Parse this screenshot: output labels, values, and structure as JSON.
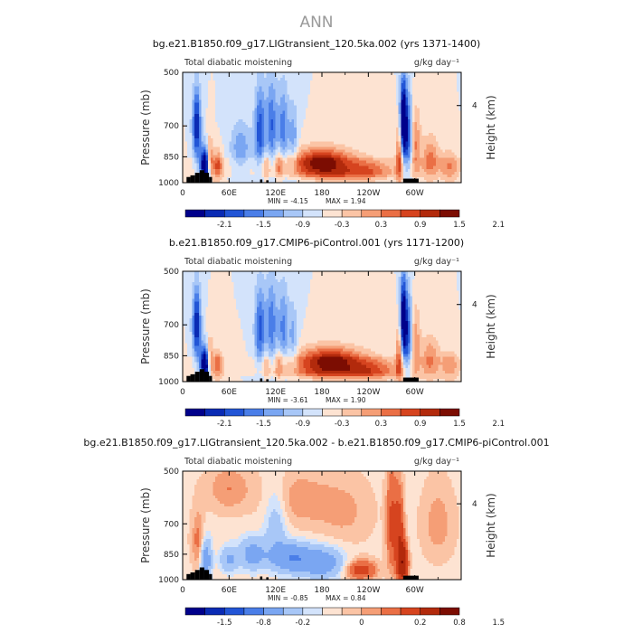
{
  "figure_title": "ANN",
  "colors": [
    "#00008b",
    "#0a2bb4",
    "#2255d6",
    "#4a7ee8",
    "#7aa6f2",
    "#a8c7f7",
    "#d3e3fb",
    "#fde3d2",
    "#fbc4a5",
    "#f59e76",
    "#ea6f45",
    "#d6441f",
    "#b22a0c",
    "#7c0d02"
  ],
  "chart_data": [
    {
      "type": "heatmap",
      "title": "bg.e21.B1850.f09_g17.LIGtransient_120.5ka.002 (yrs 1371-1400)",
      "left_label": "Total diabatic moistening",
      "units": "g/kg day⁻¹",
      "ylabel": "Pressure (mb)",
      "ylabel_right": "Height (km)",
      "xticks": [
        "0",
        "60E",
        "120E",
        "180",
        "120W",
        "60W"
      ],
      "xtick_values": [
        0,
        60,
        120,
        180,
        240,
        300
      ],
      "xlim": [
        0,
        360
      ],
      "yticks": [
        "500",
        "700",
        "850",
        "1000"
      ],
      "ytick_values": [
        500,
        700,
        850,
        1000
      ],
      "ylim": [
        1000,
        500
      ],
      "right_ticks": [
        "4"
      ],
      "right_tick_pressure": [
        616
      ],
      "min_text": "MIN =   -4.15",
      "max_text": "MAX =    1.94",
      "min": -4.15,
      "max": 1.94,
      "colorbar_levels": [
        -2.4,
        -2.1,
        -1.8,
        -1.5,
        -1.2,
        -0.9,
        -0.6,
        -0.3,
        0,
        0.3,
        0.6,
        0.9,
        1.2,
        1.5,
        1.8,
        2.1,
        2.4
      ],
      "colorbar_labels": [
        "-2.1",
        "-1.5",
        "-0.9",
        "-0.3",
        "0.3",
        "0.9",
        "1.5",
        "2.1"
      ],
      "features": [
        {
          "lon": 180,
          "p": 880,
          "amp": 1.9,
          "wl": 28,
          "wp": 55
        },
        {
          "lon": 240,
          "p": 920,
          "amp": 0.8,
          "wl": 22,
          "wp": 45
        },
        {
          "lon": 200,
          "p": 960,
          "amp": 0.7,
          "wl": 45,
          "wp": 30
        },
        {
          "lon": 18,
          "p": 700,
          "amp": -1.8,
          "wl": 4,
          "wp": 110
        },
        {
          "lon": 30,
          "p": 900,
          "amp": -3.0,
          "wl": 5,
          "wp": 70
        },
        {
          "lon": 35,
          "p": 880,
          "amp": 1.9,
          "wl": 3,
          "wp": 80
        },
        {
          "lon": 45,
          "p": 900,
          "amp": 1.2,
          "wl": 5,
          "wp": 60
        },
        {
          "lon": 100,
          "p": 720,
          "amp": -1.4,
          "wl": 5,
          "wp": 130
        },
        {
          "lon": 115,
          "p": 700,
          "amp": -1.2,
          "wl": 5,
          "wp": 140
        },
        {
          "lon": 130,
          "p": 720,
          "amp": -1.1,
          "wl": 5,
          "wp": 130
        },
        {
          "lon": 143,
          "p": 760,
          "amp": -0.8,
          "wl": 4,
          "wp": 110
        },
        {
          "lon": 108,
          "p": 900,
          "amp": 0.7,
          "wl": 4,
          "wp": 60
        },
        {
          "lon": 125,
          "p": 900,
          "amp": 0.8,
          "wl": 4,
          "wp": 60
        },
        {
          "lon": 75,
          "p": 800,
          "amp": -0.8,
          "wl": 10,
          "wp": 90
        },
        {
          "lon": 285,
          "p": 680,
          "amp": -2.6,
          "wl": 3,
          "wp": 120
        },
        {
          "lon": 292,
          "p": 750,
          "amp": -1.6,
          "wl": 4,
          "wp": 130
        },
        {
          "lon": 280,
          "p": 850,
          "amp": 1.3,
          "wl": 3,
          "wp": 110
        },
        {
          "lon": 300,
          "p": 780,
          "amp": 1.0,
          "wl": 5,
          "wp": 120
        },
        {
          "lon": 320,
          "p": 860,
          "amp": 1.0,
          "wl": 8,
          "wp": 80
        },
        {
          "lon": 345,
          "p": 900,
          "amp": 0.8,
          "wl": 8,
          "wp": 60
        },
        {
          "lon": 180,
          "p": 980,
          "amp": -0.5,
          "wl": 80,
          "wp": 20
        }
      ],
      "base_upper": -0.3,
      "base_lower": -0.15,
      "topography": [
        [
          5,
          10,
          965
        ],
        [
          10,
          16,
          955
        ],
        [
          16,
          22,
          940
        ],
        [
          22,
          28,
          925
        ],
        [
          28,
          34,
          940
        ],
        [
          34,
          38,
          965
        ],
        [
          100,
          103,
          980
        ],
        [
          108,
          111,
          985
        ],
        [
          285,
          305,
          975
        ]
      ]
    },
    {
      "type": "heatmap",
      "title": "b.e21.B1850.f09_g17.CMIP6-piControl.001 (yrs 1171-1200)",
      "left_label": "Total diabatic moistening",
      "units": "g/kg day⁻¹",
      "ylabel": "Pressure (mb)",
      "ylabel_right": "Height (km)",
      "xticks": [
        "0",
        "60E",
        "120E",
        "180",
        "120W",
        "60W"
      ],
      "xtick_values": [
        0,
        60,
        120,
        180,
        240,
        300
      ],
      "xlim": [
        0,
        360
      ],
      "yticks": [
        "500",
        "700",
        "850",
        "1000"
      ],
      "ytick_values": [
        500,
        700,
        850,
        1000
      ],
      "ylim": [
        1000,
        500
      ],
      "right_ticks": [
        "4"
      ],
      "right_tick_pressure": [
        616
      ],
      "min_text": "MIN =   -3.61",
      "max_text": "MAX =    1.90",
      "min": -3.61,
      "max": 1.9,
      "colorbar_levels": [
        -2.4,
        -2.1,
        -1.8,
        -1.5,
        -1.2,
        -0.9,
        -0.6,
        -0.3,
        0,
        0.3,
        0.6,
        0.9,
        1.2,
        1.5,
        1.8,
        2.1,
        2.4
      ],
      "colorbar_labels": [
        "-2.1",
        "-1.5",
        "-0.9",
        "-0.3",
        "0.3",
        "0.9",
        "1.5",
        "2.1"
      ],
      "features": [
        {
          "lon": 190,
          "p": 880,
          "amp": 1.9,
          "wl": 30,
          "wp": 55
        },
        {
          "lon": 245,
          "p": 920,
          "amp": 0.8,
          "wl": 22,
          "wp": 45
        },
        {
          "lon": 200,
          "p": 960,
          "amp": 0.8,
          "wl": 55,
          "wp": 30
        },
        {
          "lon": 18,
          "p": 700,
          "amp": -1.8,
          "wl": 4,
          "wp": 110
        },
        {
          "lon": 30,
          "p": 900,
          "amp": -3.0,
          "wl": 5,
          "wp": 70
        },
        {
          "lon": 35,
          "p": 880,
          "amp": 1.8,
          "wl": 3,
          "wp": 80
        },
        {
          "lon": 45,
          "p": 900,
          "amp": 1.0,
          "wl": 5,
          "wp": 60
        },
        {
          "lon": 100,
          "p": 720,
          "amp": -1.3,
          "wl": 5,
          "wp": 130
        },
        {
          "lon": 115,
          "p": 700,
          "amp": -1.1,
          "wl": 5,
          "wp": 140
        },
        {
          "lon": 130,
          "p": 720,
          "amp": -1.0,
          "wl": 5,
          "wp": 130
        },
        {
          "lon": 143,
          "p": 760,
          "amp": -0.7,
          "wl": 4,
          "wp": 110
        },
        {
          "lon": 108,
          "p": 900,
          "amp": 0.6,
          "wl": 4,
          "wp": 60
        },
        {
          "lon": 125,
          "p": 900,
          "amp": 0.7,
          "wl": 4,
          "wp": 60
        },
        {
          "lon": 285,
          "p": 680,
          "amp": -2.4,
          "wl": 3,
          "wp": 120
        },
        {
          "lon": 292,
          "p": 750,
          "amp": -1.5,
          "wl": 4,
          "wp": 130
        },
        {
          "lon": 280,
          "p": 850,
          "amp": 1.2,
          "wl": 3,
          "wp": 110
        },
        {
          "lon": 300,
          "p": 780,
          "amp": 0.9,
          "wl": 5,
          "wp": 120
        },
        {
          "lon": 320,
          "p": 860,
          "amp": 0.9,
          "wl": 8,
          "wp": 80
        },
        {
          "lon": 345,
          "p": 900,
          "amp": 0.7,
          "wl": 8,
          "wp": 60
        },
        {
          "lon": 180,
          "p": 980,
          "amp": -0.5,
          "wl": 80,
          "wp": 20
        }
      ],
      "base_upper": -0.3,
      "base_lower": -0.15,
      "topography": [
        [
          5,
          10,
          965
        ],
        [
          10,
          16,
          955
        ],
        [
          16,
          22,
          940
        ],
        [
          22,
          28,
          925
        ],
        [
          28,
          34,
          940
        ],
        [
          34,
          38,
          965
        ],
        [
          100,
          103,
          980
        ],
        [
          108,
          111,
          985
        ],
        [
          285,
          305,
          975
        ]
      ]
    },
    {
      "type": "heatmap",
      "title": "bg.e21.B1850.f09_g17.LIGtransient_120.5ka.002 - b.e21.B1850.f09_g17.CMIP6-piControl.001",
      "left_label": "Total diabatic moistening",
      "units": "g/kg day⁻¹",
      "ylabel": "Pressure (mb)",
      "ylabel_right": "Height (km)",
      "xticks": [
        "0",
        "60E",
        "120E",
        "180",
        "120W",
        "60W"
      ],
      "xtick_values": [
        0,
        60,
        120,
        180,
        240,
        300
      ],
      "xlim": [
        0,
        360
      ],
      "yticks": [
        "500",
        "700",
        "850",
        "1000"
      ],
      "ytick_values": [
        500,
        700,
        850,
        1000
      ],
      "ylim": [
        1000,
        500
      ],
      "right_ticks": [
        "4"
      ],
      "right_tick_pressure": [
        616
      ],
      "min_text": "MIN =   -0.85",
      "max_text": "MAX =    0.84",
      "min": -0.85,
      "max": 0.84,
      "colorbar_levels": [
        -2.4,
        -1.5,
        -1.2,
        -0.8,
        -0.4,
        -0.2,
        -0.1,
        -0.05,
        0,
        0.05,
        0.1,
        0.2,
        0.4,
        0.8,
        1.2,
        1.5,
        2.4
      ],
      "colorbar_labels": [
        "-1.5",
        "-0.8",
        "-0.2",
        "0",
        "0.2",
        "0.8",
        "1.5"
      ],
      "colorbar_label_edges": [
        1,
        3,
        5,
        8,
        11,
        13,
        15
      ],
      "features": [
        {
          "lon": 270,
          "p": 700,
          "amp": 0.25,
          "wl": 5,
          "wp": 160
        },
        {
          "lon": 280,
          "p": 780,
          "amp": 0.35,
          "wl": 4,
          "wp": 150
        },
        {
          "lon": 285,
          "p": 900,
          "amp": 0.7,
          "wl": 4,
          "wp": 70
        },
        {
          "lon": 20,
          "p": 780,
          "amp": 0.15,
          "wl": 6,
          "wp": 100
        },
        {
          "lon": 30,
          "p": 880,
          "amp": -0.3,
          "wl": 5,
          "wp": 80
        },
        {
          "lon": 60,
          "p": 880,
          "amp": -0.2,
          "wl": 8,
          "wp": 50
        },
        {
          "lon": 90,
          "p": 850,
          "amp": -0.25,
          "wl": 12,
          "wp": 60
        },
        {
          "lon": 140,
          "p": 870,
          "amp": -0.35,
          "wl": 18,
          "wp": 55
        },
        {
          "lon": 180,
          "p": 900,
          "amp": -0.3,
          "wl": 20,
          "wp": 60
        },
        {
          "lon": 230,
          "p": 940,
          "amp": 0.3,
          "wl": 14,
          "wp": 40
        },
        {
          "lon": 120,
          "p": 700,
          "amp": -0.15,
          "wl": 10,
          "wp": 120
        },
        {
          "lon": 150,
          "p": 600,
          "amp": 0.1,
          "wl": 30,
          "wp": 80
        },
        {
          "lon": 210,
          "p": 650,
          "amp": 0.08,
          "wl": 25,
          "wp": 100
        },
        {
          "lon": 330,
          "p": 700,
          "amp": 0.1,
          "wl": 15,
          "wp": 120
        },
        {
          "lon": 60,
          "p": 560,
          "amp": 0.12,
          "wl": 20,
          "wp": 60
        }
      ],
      "base_upper": -0.02,
      "base_lower": -0.02,
      "topography": [
        [
          5,
          10,
          965
        ],
        [
          10,
          16,
          955
        ],
        [
          16,
          22,
          940
        ],
        [
          22,
          28,
          925
        ],
        [
          28,
          34,
          940
        ],
        [
          34,
          38,
          965
        ],
        [
          100,
          103,
          980
        ],
        [
          108,
          111,
          985
        ],
        [
          285,
          305,
          975
        ]
      ]
    }
  ]
}
